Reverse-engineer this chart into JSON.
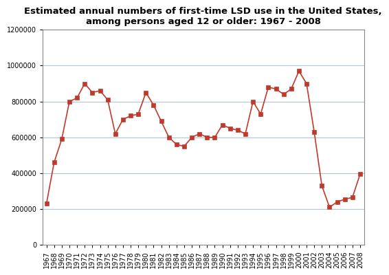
{
  "years": [
    1967,
    1968,
    1969,
    1970,
    1971,
    1972,
    1973,
    1974,
    1975,
    1976,
    1977,
    1978,
    1979,
    1980,
    1981,
    1982,
    1983,
    1984,
    1985,
    1986,
    1987,
    1988,
    1989,
    1990,
    1991,
    1992,
    1993,
    1994,
    1995,
    1996,
    1997,
    1998,
    1999,
    2000,
    2001,
    2002,
    2003,
    2004,
    2005,
    2006,
    2007,
    2008
  ],
  "values": [
    230000,
    460000,
    590000,
    800000,
    820000,
    900000,
    850000,
    860000,
    810000,
    620000,
    700000,
    720000,
    730000,
    850000,
    780000,
    690000,
    600000,
    560000,
    550000,
    600000,
    620000,
    600000,
    600000,
    670000,
    650000,
    640000,
    620000,
    800000,
    730000,
    880000,
    870000,
    840000,
    870000,
    970000,
    900000,
    630000,
    330000,
    210000,
    240000,
    255000,
    265000,
    395000
  ],
  "title": "Estimated annual numbers of first-time LSD use in the United States,\namong persons aged 12 or older: 1967 - 2008",
  "line_color": "#c0392b",
  "marker": "s",
  "marker_size": 4,
  "ylim": [
    0,
    1200000
  ],
  "yticks": [
    0,
    200000,
    400000,
    600000,
    800000,
    1000000,
    1200000
  ],
  "grid_color": "#aec6cf",
  "bg_color": "#ffffff",
  "title_fontsize": 9.5,
  "tick_fontsize": 7
}
